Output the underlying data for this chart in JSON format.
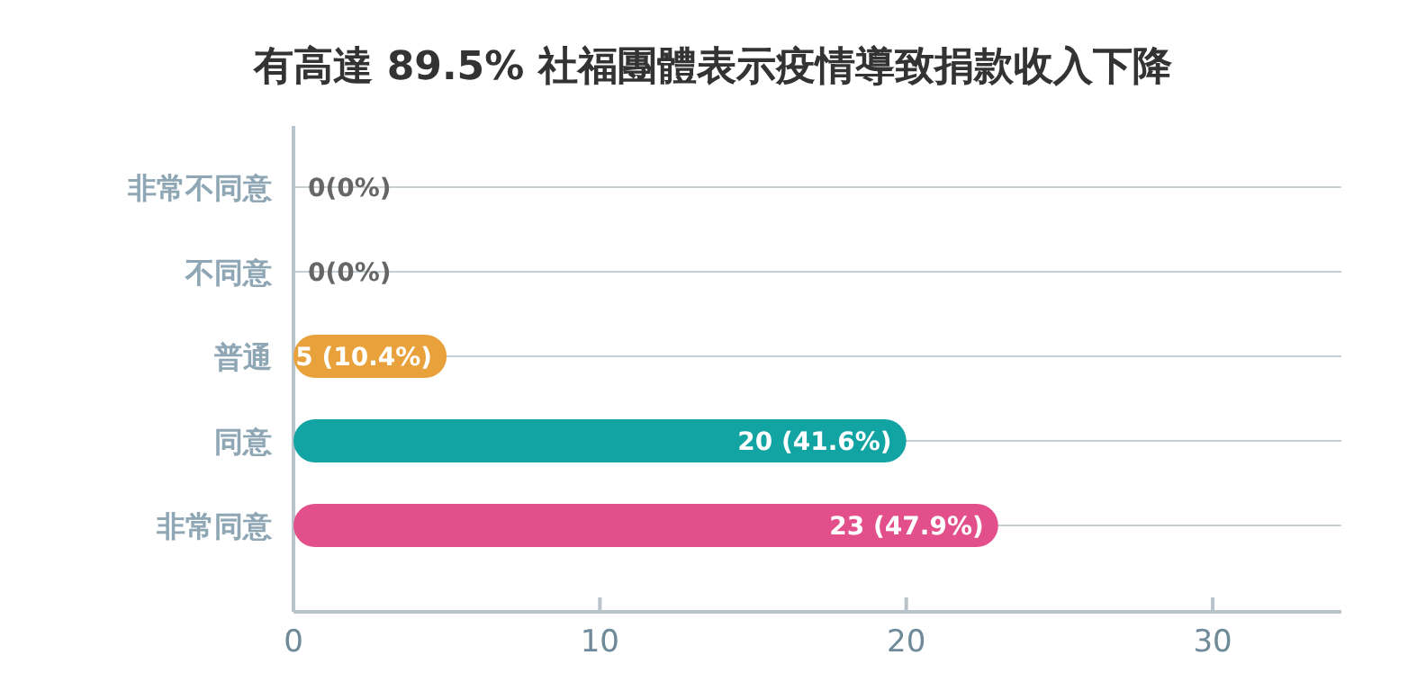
{
  "chart_data": {
    "type": "bar",
    "orientation": "horizontal",
    "title": "有高達 89.5% 社福團體表示疫情導致捐款收入下降",
    "categories": [
      "非常不同意",
      "不同意",
      "普通",
      "同意",
      "非常同意"
    ],
    "values": [
      0,
      0,
      5,
      20,
      23
    ],
    "value_labels": [
      "0(0%)",
      "0(0%)",
      "5 (10.4%)",
      "20 (41.6%)",
      "23 (47.9%)"
    ],
    "colors": [
      "#9aa8b0",
      "#9aa8b0",
      "#e9a23b",
      "#12a3a3",
      "#e24f8a"
    ],
    "xlim": [
      0,
      34.2
    ],
    "xticks": [
      0,
      10,
      20,
      30
    ],
    "grid": "y"
  }
}
